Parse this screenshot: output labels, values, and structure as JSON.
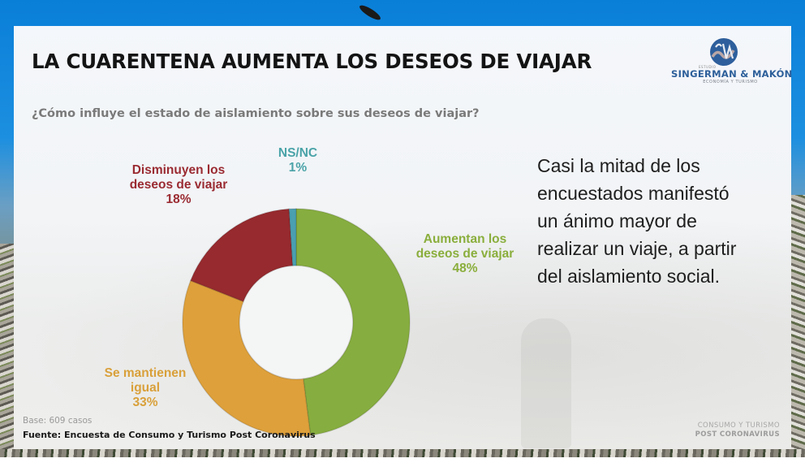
{
  "slide": {
    "title": "LA CUARENTENA AUMENTA LOS DESEOS DE VIAJAR",
    "question": "¿Cómo influye el estado de aislamiento sobre sus deseos de viajar?",
    "callout_lines": [
      "Casi la mitad de los",
      "encuestados manifestó",
      "un ánimo mayor de",
      "realizar un viaje, a partir",
      "del aislamiento social."
    ],
    "base": "Base: 609 casos",
    "source": "Fuente: Encuesta de Consumo y Turismo Post Coronavirus",
    "footer_brand": {
      "line1": "CONSUMO Y TURISMO",
      "line2": "POST CORONAVIRUS"
    },
    "logo": {
      "icon": "sm-circle-logo-icon",
      "estudio": "ESTUDIO",
      "name": "SINGERMAN & MAKÓN",
      "subtitle": "ECONOMÍA Y TURISMO"
    }
  },
  "labels": {
    "ns": {
      "line1": "NS/NC",
      "line2": "1%"
    },
    "dis": {
      "line1": "Disminuyen los",
      "line2": "deseos de viajar",
      "line3": "18%"
    },
    "aum": {
      "line1": "Aumentan los",
      "line2": "deseos de viajar",
      "line3": "48%"
    },
    "man": {
      "line1": "Se mantienen",
      "line2": "igual",
      "line3": "33%"
    }
  },
  "colors": {
    "aumentan": "#86ad3f",
    "mantienen": "#dea03a",
    "disminuyen": "#962a2e",
    "nsnc": "#4a9fb0",
    "title": "#141414",
    "logo_blue": "#2d5f9a"
  },
  "chart_data": {
    "type": "pie",
    "variant": "donut",
    "title": "¿Cómo influye el estado de aislamiento sobre sus deseos de viajar?",
    "categories": [
      "Aumentan los deseos de viajar",
      "Se mantienen igual",
      "Disminuyen los deseos de viajar",
      "NS/NC"
    ],
    "values": [
      48,
      33,
      18,
      1
    ],
    "unit": "%",
    "colors": [
      "#86ad3f",
      "#dea03a",
      "#962a2e",
      "#4a9fb0"
    ],
    "start_angle": "12 o'clock, clockwise",
    "legend": "none (direct labels)",
    "base_n": 609
  }
}
